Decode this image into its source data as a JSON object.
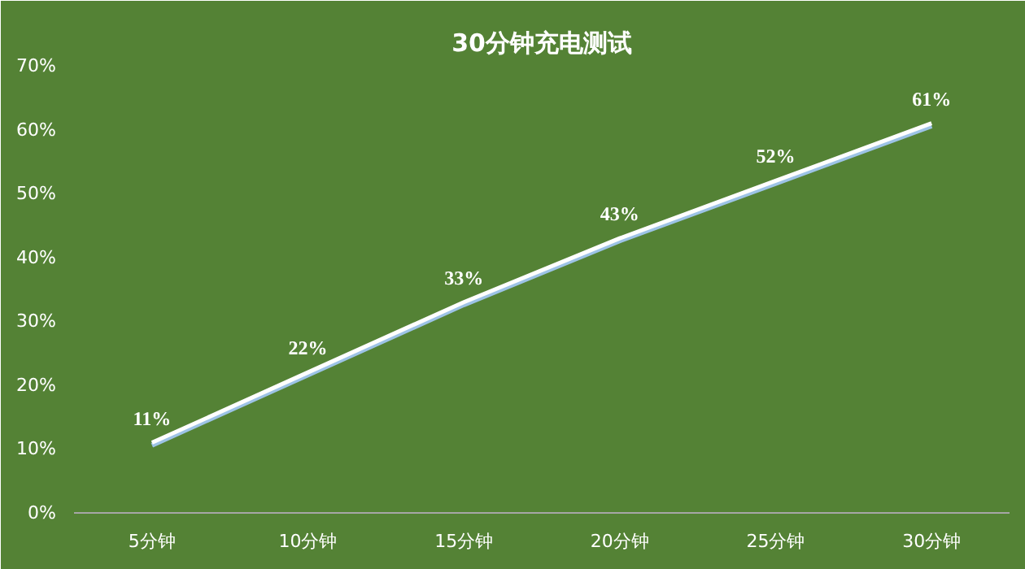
{
  "chart_data": {
    "type": "line",
    "title": "30分钟充电测试",
    "categories": [
      "5分钟",
      "10分钟",
      "15分钟",
      "20分钟",
      "25分钟",
      "30分钟"
    ],
    "series": [
      {
        "color": "#ffffff",
        "values": [
          11,
          22,
          33,
          43,
          52,
          61
        ]
      }
    ],
    "value_labels": [
      "11%",
      "22%",
      "33%",
      "43%",
      "52%",
      "61%"
    ],
    "ylim": [
      0,
      70
    ],
    "yticks": [
      {
        "value": 0,
        "label": "0%"
      },
      {
        "value": 10,
        "label": "10%"
      },
      {
        "value": 20,
        "label": "20%"
      },
      {
        "value": 30,
        "label": "30%"
      },
      {
        "value": 40,
        "label": "40%"
      },
      {
        "value": 50,
        "label": "50%"
      },
      {
        "value": 60,
        "label": "60%"
      },
      {
        "value": 70,
        "label": "70%"
      }
    ],
    "grid": false,
    "marker": "none",
    "line_style": "solid"
  }
}
